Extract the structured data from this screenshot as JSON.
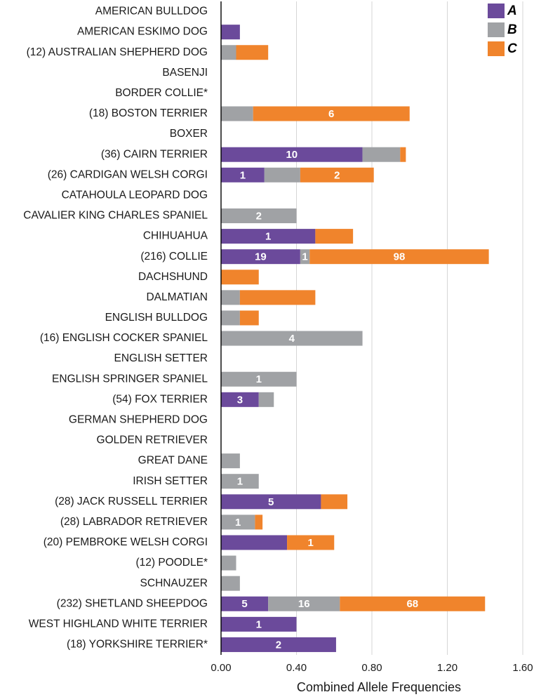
{
  "chart_data": {
    "type": "bar",
    "orientation": "horizontal",
    "stacked": true,
    "title": "",
    "xlabel": "Combined Allele Frequencies",
    "ylabel": "",
    "xlim": [
      0,
      1.6
    ],
    "xticks": [
      "0.00",
      "0.40",
      "0.80",
      "1.20",
      "1.60"
    ],
    "grid": true,
    "legend_position": "top-right",
    "categories": [
      "AMERICAN BULLDOG",
      "AMERICAN ESKIMO DOG",
      "(12) AUSTRALIAN SHEPHERD DOG",
      "BASENJI",
      "BORDER COLLIE*",
      "(18) BOSTON TERRIER",
      "BOXER",
      "(36) CAIRN TERRIER",
      "(26) CARDIGAN WELSH CORGI",
      "CATAHOULA LEOPARD DOG",
      "CAVALIER KING CHARLES SPANIEL",
      "CHIHUAHUA",
      "(216) COLLIE",
      "DACHSHUND",
      "DALMATIAN",
      "ENGLISH BULLDOG",
      "(16) ENGLISH COCKER SPANIEL",
      "ENGLISH SETTER",
      "ENGLISH SPRINGER SPANIEL",
      "(54) FOX TERRIER",
      "GERMAN SHEPHERD DOG",
      "GOLDEN RETRIEVER",
      "GREAT DANE",
      "IRISH SETTER",
      "(28) JACK RUSSELL TERRIER",
      "(28) LABRADOR RETRIEVER",
      "(20) PEMBROKE WELSH CORGI",
      "(12) POODLE*",
      "SCHNAUZER",
      "(232) SHETLAND SHEEPDOG",
      "WEST HIGHLAND WHITE TERRIER",
      "(18) YORKSHIRE TERRIER*"
    ],
    "series": [
      {
        "name": "A",
        "color": "#6b4a9b",
        "values": [
          0,
          0.1,
          0,
          0,
          0,
          0,
          0,
          0.75,
          0.23,
          0,
          0,
          0.5,
          0.42,
          0,
          0,
          0,
          0,
          0,
          0,
          0.2,
          0,
          0,
          0,
          0,
          0.53,
          0,
          0.35,
          0,
          0,
          0.25,
          0.4,
          0.61
        ],
        "labels": [
          "",
          "",
          "",
          "",
          "",
          "",
          "",
          "10",
          "1",
          "",
          "",
          "1",
          "19",
          "",
          "",
          "",
          "",
          "",
          "",
          "3",
          "",
          "",
          "",
          "",
          "5",
          "",
          "",
          "",
          "",
          "5",
          "1",
          "2"
        ]
      },
      {
        "name": "B",
        "color": "#a0a2a5",
        "values": [
          0,
          0,
          0.08,
          0,
          0,
          0.17,
          0,
          0.2,
          0.19,
          0,
          0.4,
          0,
          0.05,
          0,
          0.1,
          0.1,
          0.75,
          0,
          0.4,
          0.08,
          0,
          0,
          0.1,
          0.2,
          0,
          0.18,
          0,
          0.08,
          0.1,
          0.38,
          0,
          0
        ],
        "labels": [
          "",
          "",
          "",
          "",
          "",
          "",
          "",
          "",
          "",
          "",
          "2",
          "",
          "1",
          "",
          "",
          "",
          "4",
          "",
          "1",
          "",
          "",
          "",
          "",
          "1",
          "",
          "1",
          "",
          "",
          "",
          "16",
          "",
          ""
        ]
      },
      {
        "name": "C",
        "color": "#f0842c",
        "values": [
          0,
          0,
          0.17,
          0,
          0,
          0.83,
          0,
          0.03,
          0.39,
          0,
          0,
          0.2,
          0.95,
          0.2,
          0.4,
          0.1,
          0,
          0,
          0,
          0,
          0,
          0,
          0,
          0,
          0.14,
          0.04,
          0.25,
          0,
          0,
          0.77,
          0,
          0
        ],
        "labels": [
          "",
          "",
          "",
          "",
          "",
          "6",
          "",
          "",
          "2",
          "",
          "",
          "",
          "98",
          "",
          "",
          "",
          "",
          "",
          "",
          "",
          "",
          "",
          "",
          "",
          "",
          "",
          "1",
          "",
          "",
          "68",
          "",
          ""
        ]
      }
    ]
  }
}
